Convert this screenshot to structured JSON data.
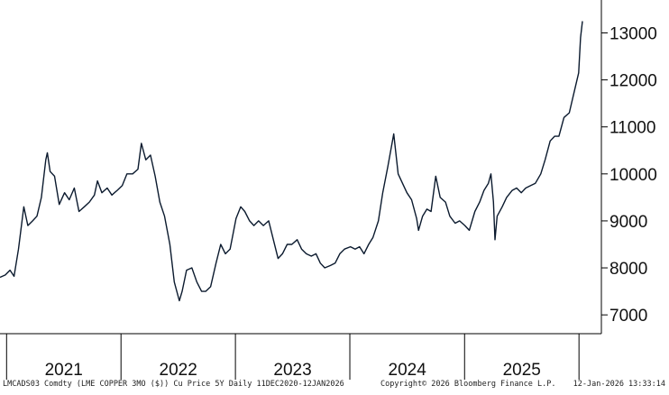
{
  "chart_data": {
    "type": "line",
    "title": "",
    "xlabel": "",
    "ylabel": "",
    "ylim": [
      6600,
      13700
    ],
    "y_ticks": [
      7000,
      8000,
      9000,
      10000,
      11000,
      12000,
      13000
    ],
    "y_tick_labels": [
      "7000",
      "8000",
      "9000",
      "10000",
      "11000",
      "12000",
      "13000"
    ],
    "x_range": [
      "2020-12-11",
      "2026-01-12"
    ],
    "x_year_labels": [
      "2021",
      "2022",
      "2023",
      "2024",
      "2025"
    ],
    "x_year_boundaries": [
      "2021-01-01",
      "2022-01-01",
      "2023-01-01",
      "2024-01-01",
      "2025-01-01",
      "2026-01-01"
    ],
    "grid": false,
    "line_color": "#0b1a2e",
    "series": [
      {
        "x": [
          "2020-12-11",
          "2020-12-28",
          "2021-01-12",
          "2021-01-25",
          "2021-02-08",
          "2021-02-25",
          "2021-03-10",
          "2021-03-25",
          "2021-04-08",
          "2021-04-22",
          "2021-05-06",
          "2021-05-11",
          "2021-05-20",
          "2021-06-03",
          "2021-06-18",
          "2021-07-05",
          "2021-07-20",
          "2021-08-05",
          "2021-08-20",
          "2021-09-06",
          "2021-09-22",
          "2021-10-08",
          "2021-10-18",
          "2021-11-01",
          "2021-11-18",
          "2021-12-03",
          "2021-12-20",
          "2022-01-05",
          "2022-01-20",
          "2022-02-07",
          "2022-02-24",
          "2022-03-07",
          "2022-03-21",
          "2022-04-05",
          "2022-04-20",
          "2022-05-05",
          "2022-05-20",
          "2022-06-06",
          "2022-06-20",
          "2022-07-06",
          "2022-07-15",
          "2022-07-29",
          "2022-08-15",
          "2022-08-31",
          "2022-09-15",
          "2022-09-28",
          "2022-10-14",
          "2022-10-31",
          "2022-11-15",
          "2022-11-30",
          "2022-12-15",
          "2023-01-03",
          "2023-01-18",
          "2023-01-31",
          "2023-02-15",
          "2023-03-01",
          "2023-03-16",
          "2023-03-31",
          "2023-04-17",
          "2023-05-02",
          "2023-05-17",
          "2023-05-31",
          "2023-06-15",
          "2023-06-30",
          "2023-07-17",
          "2023-07-31",
          "2023-08-15",
          "2023-08-31",
          "2023-09-15",
          "2023-09-29",
          "2023-10-13",
          "2023-10-31",
          "2023-11-15",
          "2023-11-30",
          "2023-12-15",
          "2024-01-03",
          "2024-01-18",
          "2024-02-01",
          "2024-02-15",
          "2024-03-01",
          "2024-03-15",
          "2024-04-01",
          "2024-04-15",
          "2024-05-01",
          "2024-05-20",
          "2024-06-03",
          "2024-06-17",
          "2024-07-01",
          "2024-07-16",
          "2024-08-01",
          "2024-08-07",
          "2024-08-20",
          "2024-09-03",
          "2024-09-16",
          "2024-10-01",
          "2024-10-15",
          "2024-11-01",
          "2024-11-15",
          "2024-12-02",
          "2024-12-16",
          "2025-01-02",
          "2025-01-16",
          "2025-02-03",
          "2025-02-18",
          "2025-03-04",
          "2025-03-18",
          "2025-03-26",
          "2025-04-03",
          "2025-04-08",
          "2025-04-15",
          "2025-05-01",
          "2025-05-15",
          "2025-06-02",
          "2025-06-16",
          "2025-07-01",
          "2025-07-15",
          "2025-07-31",
          "2025-08-15",
          "2025-09-01",
          "2025-09-15",
          "2025-10-01",
          "2025-10-15",
          "2025-10-29",
          "2025-11-14",
          "2025-12-01",
          "2025-12-15",
          "2025-12-31",
          "2026-01-06",
          "2026-01-12"
        ],
        "y": [
          7800,
          7850,
          7950,
          7820,
          8400,
          9300,
          8900,
          9000,
          9100,
          9500,
          10300,
          10450,
          10050,
          9950,
          9350,
          9600,
          9450,
          9700,
          9200,
          9300,
          9400,
          9550,
          9850,
          9600,
          9700,
          9550,
          9650,
          9750,
          10000,
          10000,
          10100,
          10650,
          10300,
          10400,
          9950,
          9400,
          9100,
          8500,
          7700,
          7300,
          7500,
          7950,
          8000,
          7700,
          7500,
          7500,
          7600,
          8100,
          8500,
          8300,
          8400,
          9050,
          9300,
          9200,
          9000,
          8900,
          9000,
          8900,
          9000,
          8600,
          8200,
          8300,
          8500,
          8500,
          8600,
          8400,
          8300,
          8250,
          8300,
          8100,
          8000,
          8050,
          8100,
          8300,
          8400,
          8450,
          8400,
          8450,
          8300,
          8500,
          8650,
          9000,
          9600,
          10150,
          10850,
          10000,
          9800,
          9600,
          9450,
          9050,
          8800,
          9100,
          9250,
          9200,
          9950,
          9500,
          9400,
          9100,
          8950,
          9000,
          8900,
          8800,
          9200,
          9400,
          9650,
          9800,
          10000,
          9400,
          8600,
          9100,
          9300,
          9500,
          9650,
          9700,
          9600,
          9700,
          9750,
          9800,
          10000,
          10300,
          10700,
          10800,
          10800,
          11200,
          11300,
          11700,
          12150,
          12900,
          13250
        ]
      }
    ]
  },
  "footer": {
    "left": "LMCADS03 Comdty (LME COPPER   3MO ($)) Cu Price 5Y Daily 11DEC2020-12JAN2026",
    "center": "Copyright© 2026 Bloomberg Finance L.P.",
    "right": "12-Jan-2026 13:33:14"
  }
}
